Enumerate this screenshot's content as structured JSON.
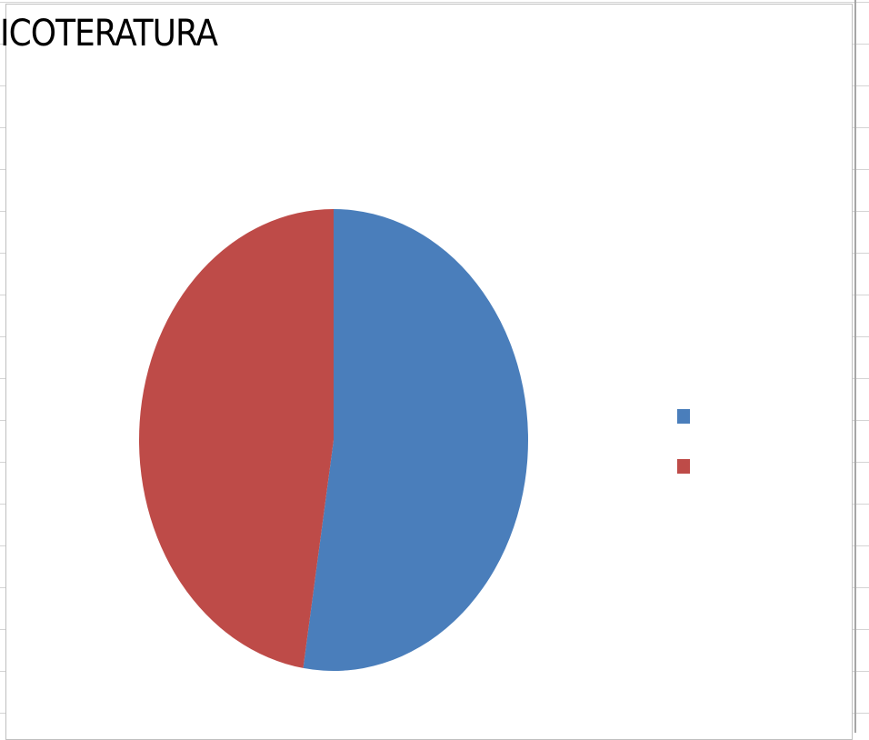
{
  "chart_data": {
    "type": "pie",
    "title": "ICOTERATURA",
    "categories": [
      "",
      ""
    ],
    "values": [
      52.5,
      47.5
    ],
    "colors": [
      "#4a7ebb",
      "#be4b48"
    ],
    "legend": "right"
  }
}
